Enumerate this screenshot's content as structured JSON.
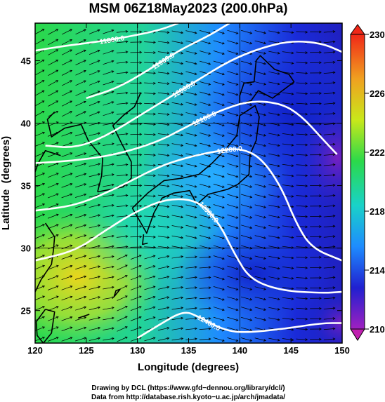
{
  "chart_data": {
    "type": "heatmap",
    "title": "MSM 06Z18May2023 (200.0hPa)",
    "xlabel": "Longitude (degrees)",
    "ylabel": "Latitude  (degrees)",
    "xlim": [
      120,
      150
    ],
    "ylim": [
      22.4,
      48
    ],
    "x_ticks": [
      120,
      125,
      130,
      135,
      140,
      145,
      150
    ],
    "y_ticks": [
      25,
      30,
      35,
      40,
      45
    ],
    "colorbar": {
      "range": [
        210,
        230
      ],
      "ticks": [
        210,
        214,
        218,
        222,
        226,
        230
      ],
      "colors": [
        "#a020c0",
        "#2020d0",
        "#1e8cff",
        "#19d2c8",
        "#2bd94a",
        "#c9e81a",
        "#f0a020",
        "#f02818"
      ]
    },
    "contours": [
      {
        "label": "11800.0",
        "points": [
          [
            120,
            45.8
          ],
          [
            123,
            46.2
          ],
          [
            126,
            46.5
          ],
          [
            129,
            46.9
          ],
          [
            132,
            47.4
          ],
          [
            134,
            48.0
          ]
        ]
      },
      {
        "label": "11900.0",
        "points": [
          [
            125,
            42.0
          ],
          [
            128,
            42.8
          ],
          [
            131,
            44.2
          ],
          [
            134,
            45.8
          ],
          [
            137,
            47.0
          ],
          [
            139,
            48.0
          ]
        ]
      },
      {
        "label": "12000.0",
        "points": [
          [
            121,
            38.2
          ],
          [
            124,
            38.0
          ],
          [
            127,
            39.0
          ],
          [
            130,
            40.5
          ],
          [
            133,
            42.0
          ],
          [
            136,
            43.5
          ],
          [
            139,
            45.0
          ],
          [
            142,
            46.0
          ],
          [
            145,
            46.6
          ],
          [
            148,
            46.4
          ],
          [
            150,
            45.7
          ]
        ]
      },
      {
        "label": "12100.0",
        "points": [
          [
            120,
            36.8
          ],
          [
            124,
            37.0
          ],
          [
            128,
            37.5
          ],
          [
            132,
            38.5
          ],
          [
            135,
            39.8
          ],
          [
            138,
            41.0
          ],
          [
            141,
            41.8
          ],
          [
            144,
            41.6
          ],
          [
            146,
            40.6
          ],
          [
            148,
            38.8
          ],
          [
            149.5,
            37.5
          ]
        ]
      },
      {
        "label": "12200.0",
        "points": [
          [
            120,
            33.0
          ],
          [
            124,
            33.4
          ],
          [
            128,
            34.8
          ],
          [
            132,
            36.5
          ],
          [
            135,
            37.3
          ],
          [
            138,
            37.8
          ],
          [
            140,
            38.0
          ],
          [
            142,
            37.3
          ],
          [
            144,
            35.0
          ],
          [
            145.5,
            32.0
          ],
          [
            147,
            30.0
          ],
          [
            150,
            29.0
          ]
        ]
      },
      {
        "label": "12300.0",
        "points": [
          [
            120,
            29.0
          ],
          [
            124,
            29.8
          ],
          [
            127,
            31.5
          ],
          [
            130,
            33.0
          ],
          [
            133,
            34.0
          ],
          [
            136,
            33.8
          ],
          [
            138,
            32.0
          ],
          [
            139.5,
            29.5
          ],
          [
            141,
            27.5
          ],
          [
            144,
            26.6
          ],
          [
            148,
            26.4
          ],
          [
            150,
            26.5
          ]
        ]
      },
      {
        "label": "12400.0",
        "points": [
          [
            130,
            22.8
          ],
          [
            132,
            23.8
          ],
          [
            134.5,
            25.0
          ],
          [
            136,
            24.5
          ],
          [
            138,
            23.6
          ],
          [
            140,
            23.2
          ],
          [
            144,
            23.5
          ],
          [
            148,
            24.0
          ],
          [
            150,
            24.0
          ]
        ]
      }
    ],
    "credits": [
      "Drawing by DCL (https://www.gfd−dennou.org/library/dcl/)",
      "Data from http://database.rish.kyoto−u.ac.jp/arch/jmadata/"
    ]
  }
}
